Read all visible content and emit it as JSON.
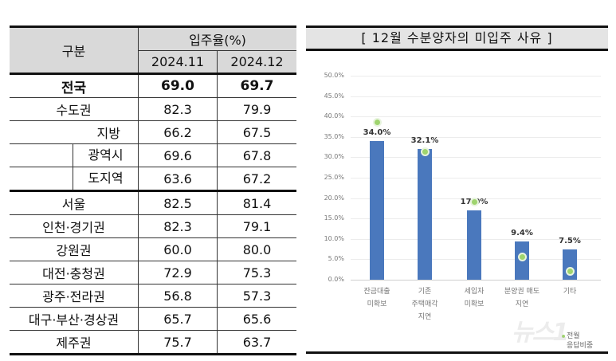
{
  "table": {
    "header": {
      "category_label": "구분",
      "group_label": "입주율(%)",
      "periods": [
        "2024.11",
        "2024.12"
      ]
    },
    "rows": [
      {
        "label": "전국",
        "v1": "69.0",
        "v2": "69.7",
        "bold": true
      },
      {
        "label": "수도권",
        "v1": "82.3",
        "v2": "79.9"
      },
      {
        "label": "지방",
        "v1": "66.2",
        "v2": "67.5"
      },
      {
        "label": "광역시",
        "v1": "69.6",
        "v2": "67.8",
        "sub": true
      },
      {
        "label": "도지역",
        "v1": "63.6",
        "v2": "67.2",
        "sub": true
      },
      {
        "label": "서울",
        "v1": "82.5",
        "v2": "81.4"
      },
      {
        "label": "인천·경기권",
        "v1": "82.3",
        "v2": "79.1"
      },
      {
        "label": "강원권",
        "v1": "60.0",
        "v2": "80.0"
      },
      {
        "label": "대전·충청권",
        "v1": "72.9",
        "v2": "75.3"
      },
      {
        "label": "광주·전라권",
        "v1": "56.8",
        "v2": "57.3"
      },
      {
        "label": "대구·부산·경상권",
        "v1": "65.7",
        "v2": "65.6"
      },
      {
        "label": "제주권",
        "v1": "75.7",
        "v2": "63.7"
      }
    ]
  },
  "chart_data": {
    "type": "bar",
    "title": "[ 12월 수분양자의 미입주 사유 ]",
    "xlabel": "",
    "ylabel": "",
    "ylim": [
      0,
      50
    ],
    "yticks": [
      "0.0%",
      "5.0%",
      "10.0%",
      "15.0%",
      "20.0%",
      "25.0%",
      "30.0%",
      "35.0%",
      "40.0%",
      "45.0%",
      "50.0%"
    ],
    "grid": true,
    "categories": [
      "잔금대출\n미확보",
      "기존\n주택매각\n지연",
      "세입자\n미확보",
      "분양권 매도\n지연",
      "기타"
    ],
    "series": [
      {
        "name": "12월",
        "type": "bar",
        "color": "#4a78bd",
        "values": [
          34.0,
          32.1,
          17.0,
          9.4,
          7.5
        ],
        "labels": [
          "34.0%",
          "32.1%",
          "17.0%",
          "9.4%",
          "7.5%"
        ]
      },
      {
        "name": "전월 응답비중",
        "type": "scatter",
        "color": "#9fd46e",
        "values": [
          38.5,
          31.4,
          19.0,
          5.5,
          2.0
        ]
      }
    ],
    "legend": {
      "position": "bottom-right",
      "entries": [
        "전월",
        "응답비중"
      ]
    }
  },
  "watermark": "뉴스1"
}
